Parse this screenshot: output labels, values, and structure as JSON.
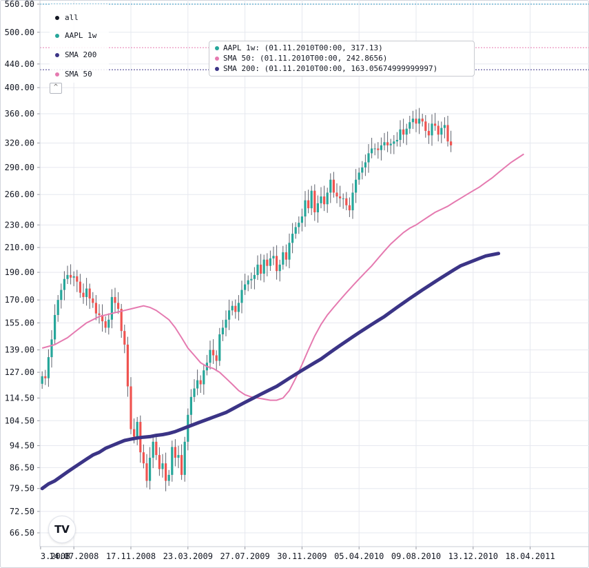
{
  "legend": {
    "items": [
      {
        "label": "all",
        "color": "#131722"
      },
      {
        "label": "AAPL 1w",
        "color": "#26a69a"
      },
      {
        "label": "SMA 200",
        "color": "#3b3486"
      },
      {
        "label": "SMA 50",
        "color": "#e57ab0"
      }
    ],
    "toggle_icon": "chevron-up-icon"
  },
  "tooltip": {
    "rows": [
      {
        "text": "AAPL 1w: (01.11.2010T00:00, 317.13)",
        "color": "#26a69a"
      },
      {
        "text": "SMA 50: (01.11.2010T00:00, 242.8656)",
        "color": "#e57ab0"
      },
      {
        "text": "SMA 200: (01.11.2010T00:00, 163.05674999999997)",
        "color": "#3b3486"
      }
    ]
  },
  "logo": {
    "text": "TV",
    "icon": "tradingview-logo-icon"
  },
  "colors": {
    "up": "#26a69a",
    "down": "#ef5350",
    "sma50": "#e57ab0",
    "sma200": "#3b3486",
    "grid": "#e6e8ef"
  },
  "chart_data": {
    "type": "candlestick",
    "title": "",
    "y_scale": "log",
    "ylim": [
      62,
      562
    ],
    "y_ticks": [
      "560.00",
      "500.00",
      "440.00",
      "400.00",
      "360.00",
      "320.00",
      "290.00",
      "260.00",
      "230.00",
      "210.00",
      "190.00",
      "170.00",
      "155.00",
      "139.00",
      "127.00",
      "114.50",
      "104.50",
      "94.50",
      "86.50",
      "79.50",
      "72.50",
      "66.50"
    ],
    "x_ticks": [
      {
        "label": "3.2008",
        "week": -0.5
      },
      {
        "label": "14.07.2008",
        "week": 10
      },
      {
        "label": "17.11.2008",
        "week": 28
      },
      {
        "label": "23.03.2009",
        "week": 46
      },
      {
        "label": "27.07.2009",
        "week": 64
      },
      {
        "label": "30.11.2009",
        "week": 82
      },
      {
        "label": "05.04.2010",
        "week": 100
      },
      {
        "label": "09.08.2010",
        "week": 118
      },
      {
        "label": "13.12.2010",
        "week": 136
      },
      {
        "label": "18.04.2011",
        "week": 154
      }
    ],
    "reference_lines": [
      {
        "value": 560,
        "color": "#2a8fbd"
      },
      {
        "value": 470,
        "color": "#e57ab0"
      },
      {
        "value": 430,
        "color": "#3b3486"
      }
    ],
    "close": [
      125,
      124,
      135,
      145,
      160,
      170,
      177,
      185,
      188,
      186,
      187,
      183,
      175,
      172,
      178,
      171,
      168,
      161,
      160,
      156,
      152,
      157,
      172,
      168,
      164,
      150,
      142,
      120,
      101,
      98,
      104,
      92,
      88,
      82,
      90,
      96,
      91,
      86,
      88,
      82,
      84,
      94,
      90,
      91,
      84,
      96,
      107,
      115,
      119,
      123,
      121,
      128,
      132,
      139,
      136,
      133,
      148,
      152,
      157,
      163,
      166,
      162,
      168,
      177,
      181,
      184,
      185,
      188,
      196,
      189,
      200,
      195,
      201,
      203,
      191,
      196,
      206,
      200,
      214,
      222,
      228,
      232,
      238,
      254,
      246,
      264,
      242,
      251,
      258,
      250,
      262,
      276,
      262,
      258,
      256,
      256,
      249,
      244,
      262,
      276,
      284,
      290,
      296,
      307,
      313,
      313,
      311,
      317,
      321,
      317,
      319,
      322,
      324,
      338,
      331,
      339,
      348,
      353,
      346,
      353,
      349,
      336,
      330,
      346,
      343,
      331,
      340,
      344,
      322,
      317
    ],
    "sma50": [
      140,
      141,
      142,
      144,
      146,
      149,
      152,
      155,
      157,
      159,
      160,
      161,
      162,
      163,
      164,
      165,
      166,
      165,
      163,
      160,
      157,
      152,
      146,
      140,
      136,
      132,
      130,
      129,
      127,
      124,
      121,
      118,
      116,
      115,
      114.5,
      114,
      113.5,
      113.5,
      114.5,
      118,
      124,
      131,
      139,
      147,
      154,
      160,
      165,
      170,
      175,
      180,
      185,
      190,
      195,
      201,
      207,
      213,
      218,
      223,
      227,
      230,
      234,
      238,
      242,
      245,
      248,
      252,
      256,
      260,
      264,
      268,
      273,
      278,
      284,
      290,
      296,
      301,
      306
    ],
    "sma200": [
      79.5,
      81,
      82,
      83.5,
      85,
      86.5,
      88,
      89.5,
      91,
      92,
      93.5,
      94.5,
      95.5,
      96.5,
      97,
      97.5,
      97.8,
      98,
      98.5,
      98.8,
      99.3,
      100,
      101,
      102,
      103,
      104,
      105,
      106,
      107,
      108,
      109.5,
      111,
      112.5,
      114,
      115.5,
      117,
      118.5,
      120,
      122,
      124,
      126,
      128,
      130,
      132,
      134,
      136.5,
      139,
      141.5,
      144,
      146.5,
      149,
      151.5,
      154,
      156.5,
      159,
      162,
      165,
      168,
      171,
      174,
      177,
      180,
      183,
      186,
      189,
      192,
      195,
      197,
      199,
      201,
      203,
      204,
      205
    ]
  }
}
